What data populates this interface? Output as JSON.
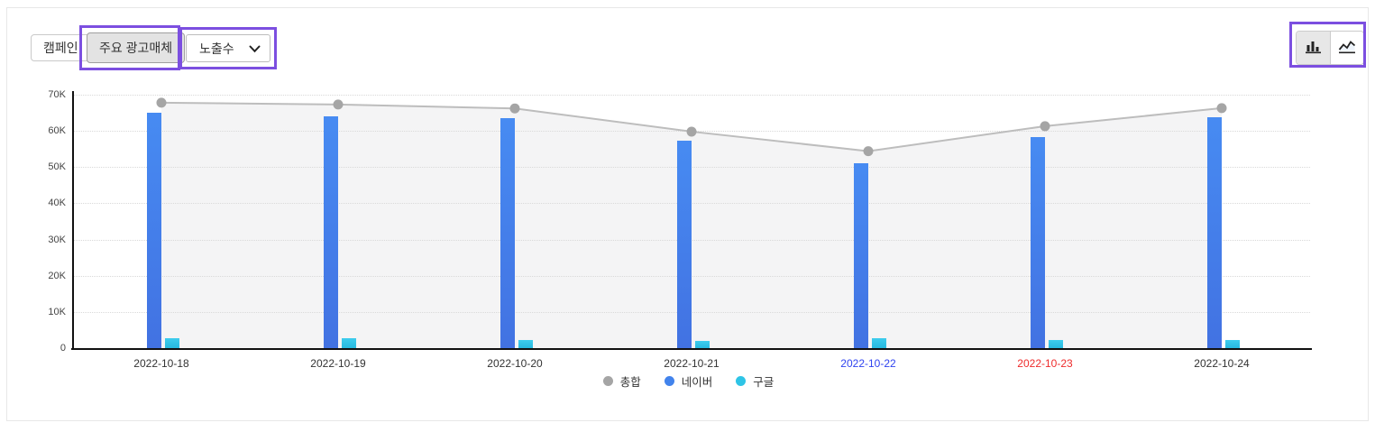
{
  "toolbar": {
    "campaign_label": "캠페인",
    "media_label": "주요 광고매체",
    "metric_select": {
      "value": "노출수"
    }
  },
  "colors": {
    "annotation": "#7c4fe0",
    "naver_bar": "#4283ec",
    "google_bar": "#2ec4e6",
    "total_line": "#bdbdbd",
    "total_dot": "#a5a5a5",
    "saturday_label": "#2f43ef",
    "sunday_label": "#ee2c2c"
  },
  "chart_data": {
    "type": "bar",
    "subtype": "combo bar + line",
    "title": "",
    "xlabel": "",
    "ylabel": "",
    "categories": [
      "2022-10-18",
      "2022-10-19",
      "2022-10-20",
      "2022-10-21",
      "2022-10-22",
      "2022-10-23",
      "2022-10-24"
    ],
    "series": [
      {
        "name": "총합",
        "type": "line",
        "color": "#a5a5a5",
        "values": [
          67800,
          67300,
          66200,
          59800,
          54400,
          61300,
          66300
        ]
      },
      {
        "name": "네이버",
        "type": "bar",
        "color": "#4283ec",
        "values": [
          64900,
          64100,
          63400,
          57400,
          51100,
          58400,
          63700
        ]
      },
      {
        "name": "구글",
        "type": "bar",
        "color": "#2ec4e6",
        "values": [
          2800,
          2700,
          2300,
          1900,
          2800,
          2300,
          2300
        ]
      }
    ],
    "yticks": [
      "70K",
      "60K",
      "50K",
      "40K",
      "30K",
      "20K",
      "10K",
      "0"
    ],
    "ytick_values": [
      70000,
      60000,
      50000,
      40000,
      30000,
      20000,
      10000,
      0
    ],
    "ylim": [
      0,
      70000
    ],
    "xtick_colors": [
      "#333333",
      "#333333",
      "#333333",
      "#333333",
      "#2f43ef",
      "#ee2c2c",
      "#333333"
    ],
    "grid": "horizontal dotted",
    "legend_position": "bottom-center",
    "area_fill_under_line": "#f4f4f5"
  }
}
